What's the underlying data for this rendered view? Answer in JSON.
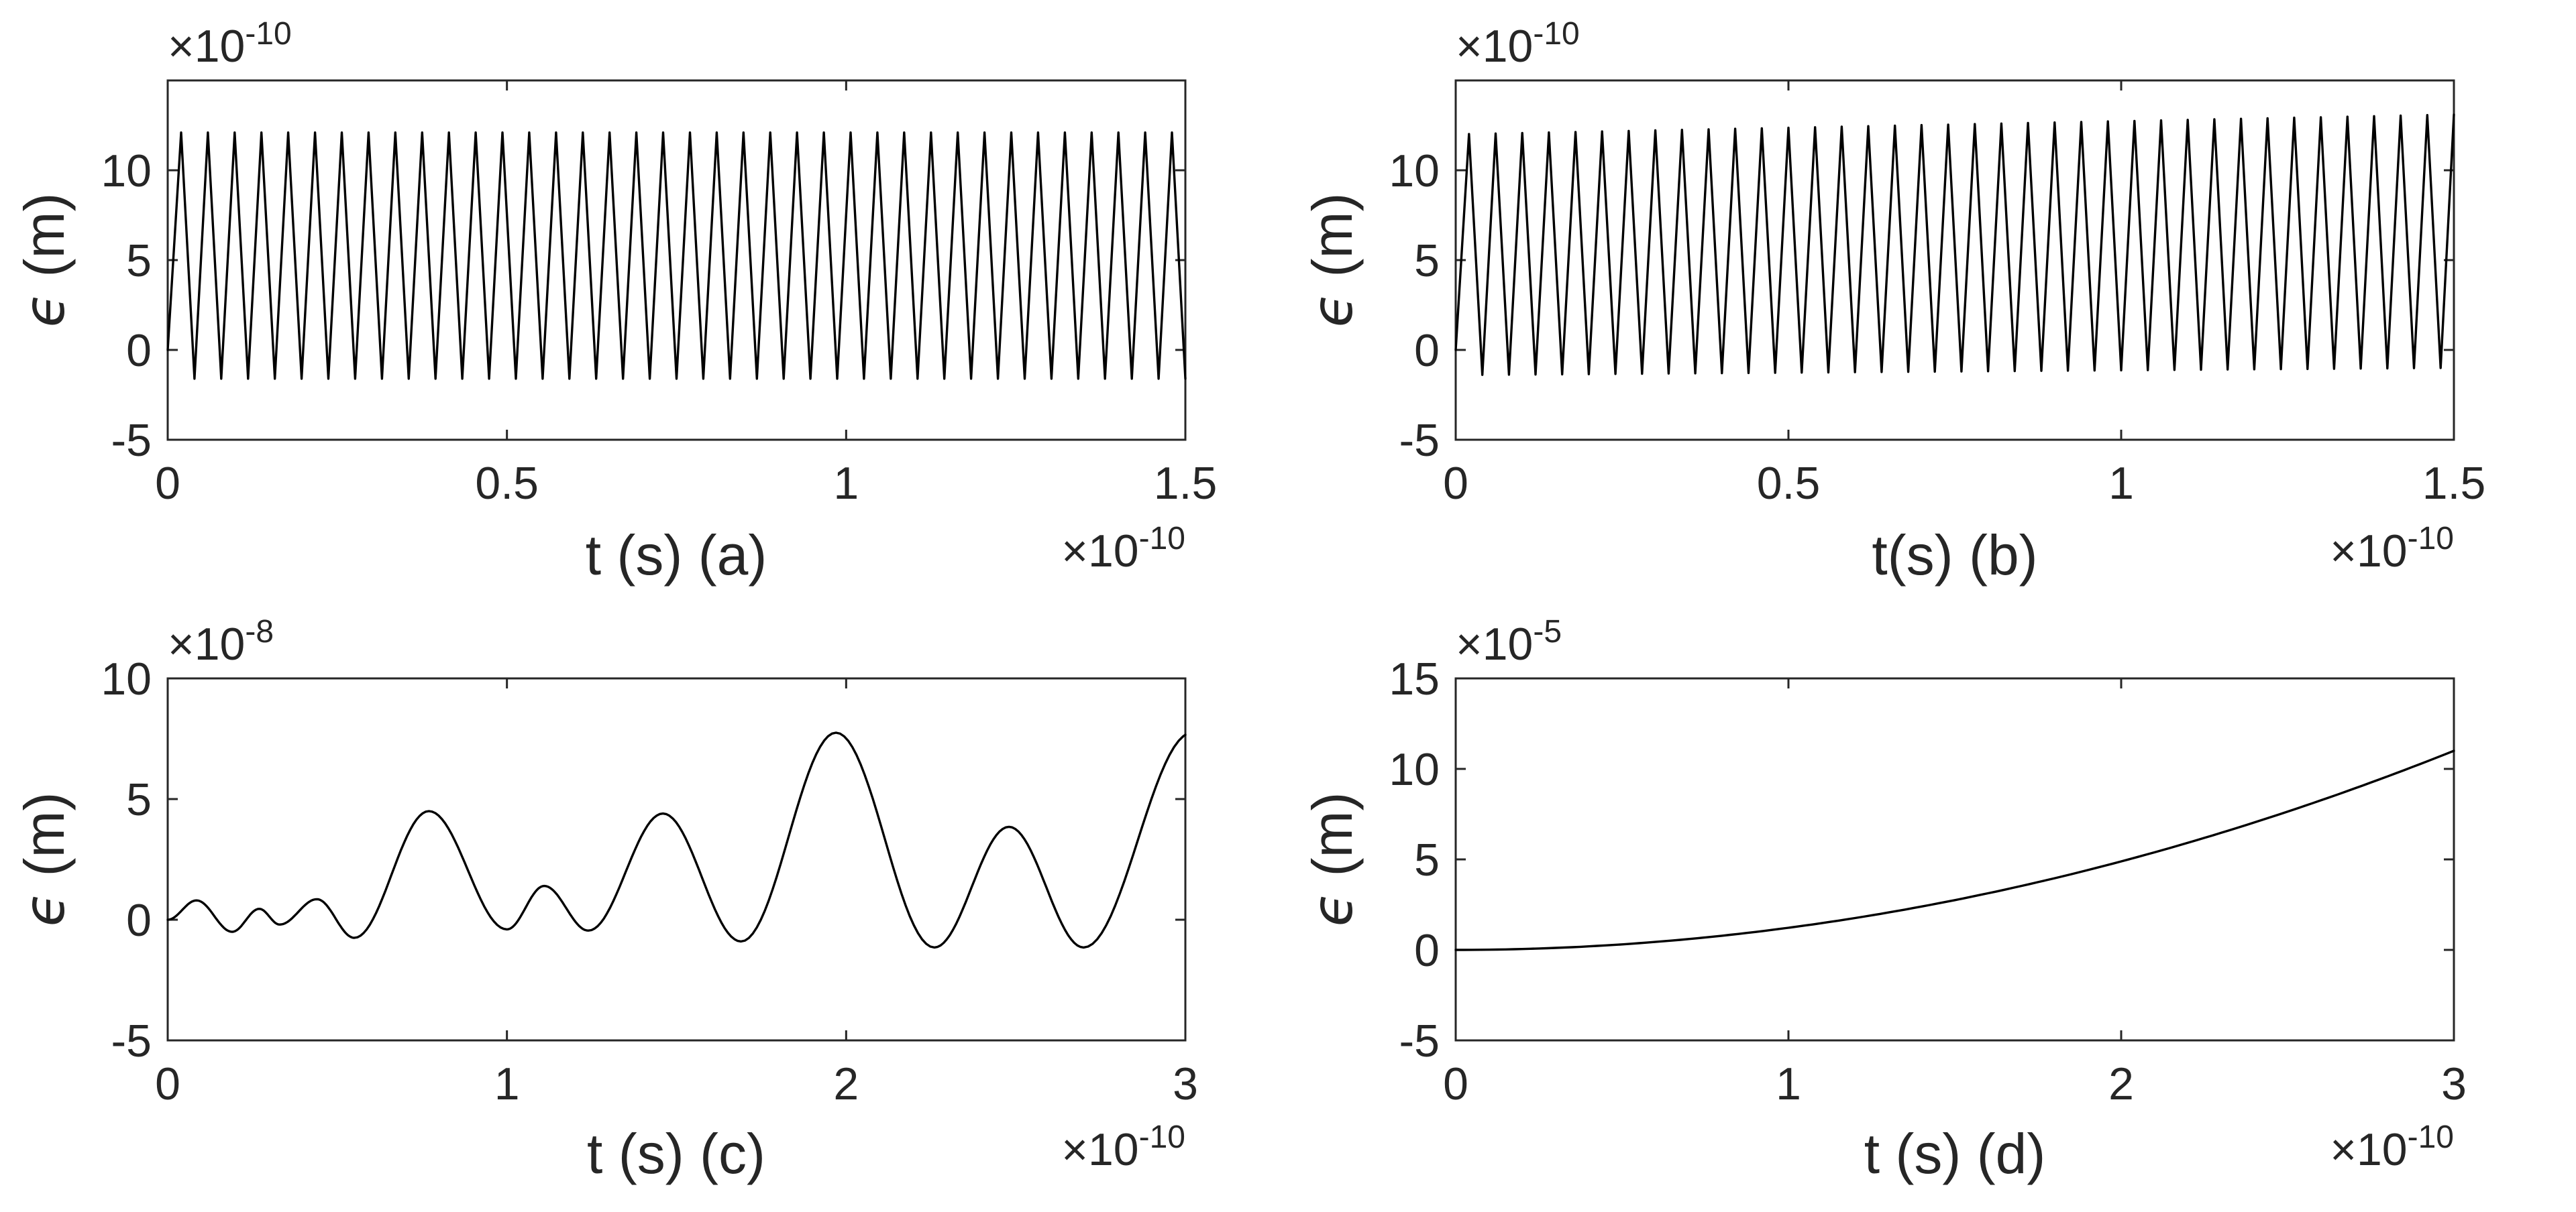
{
  "figure": {
    "background": "#ffffff",
    "curve_color": "#000000",
    "axis_color": "#262626",
    "grid": false,
    "legend": null
  },
  "chart_data": [
    {
      "panel": "a",
      "type": "line",
      "title": "",
      "xlabel": "t (s) (a)",
      "ylabel_symbol": "ϵ",
      "ylabel_rest": " (m)",
      "y_exponent_prefix": "×10",
      "y_exponent_power": "-10",
      "x_exponent_prefix": "×10",
      "x_exponent_power": "-10",
      "xlim": [
        0,
        1.5
      ],
      "ylim": [
        -5,
        15
      ],
      "x_ticks": [
        0,
        0.5,
        1,
        1.5
      ],
      "x_tick_labels": [
        "0",
        "0.5",
        "1",
        "1.5"
      ],
      "y_ticks": [
        -5,
        0,
        5,
        10
      ],
      "y_tick_labels": [
        "-5",
        "0",
        "5",
        "10"
      ],
      "series_description": "dense triangular oscillation, ~38 periods, constant envelope, peaks ~12.1e-10 m, valleys ~-1.6e-10 m",
      "waveform": {
        "kind": "triangle",
        "t_end": 1.5,
        "periods": 38,
        "start_value": 0,
        "peak_start": 12.1,
        "peak_end": 12.1,
        "valley_start": -1.6,
        "valley_end": -1.6
      }
    },
    {
      "panel": "b",
      "type": "line",
      "title": "",
      "xlabel": "t(s) (b)",
      "ylabel_symbol": "ϵ",
      "ylabel_rest": " (m)",
      "y_exponent_prefix": "×10",
      "y_exponent_power": "-10",
      "x_exponent_prefix": "×10",
      "x_exponent_power": "-10",
      "xlim": [
        0,
        1.5
      ],
      "ylim": [
        -5,
        15
      ],
      "x_ticks": [
        0,
        0.5,
        1,
        1.5
      ],
      "x_tick_labels": [
        "0",
        "0.5",
        "1",
        "1.5"
      ],
      "y_ticks": [
        -5,
        0,
        5,
        10
      ],
      "y_tick_labels": [
        "-5",
        "0",
        "5",
        "10"
      ],
      "series_description": "dense triangular oscillation, ~37.5 periods, slowly growing envelope, peaks 12.0→13.1e-10 m, valleys ~-1.4→-1.0e-10 m",
      "waveform": {
        "kind": "triangle",
        "t_end": 1.5,
        "periods": 37.5,
        "start_value": 0,
        "peak_start": 12.0,
        "peak_end": 13.1,
        "valley_start": -1.4,
        "valley_end": -1.0
      }
    },
    {
      "panel": "c",
      "type": "line",
      "title": "",
      "xlabel": "t (s) (c)",
      "ylabel_symbol": "ϵ",
      "ylabel_rest": " (m)",
      "y_exponent_prefix": "×10",
      "y_exponent_power": "-8",
      "x_exponent_prefix": "×10",
      "x_exponent_power": "-10",
      "xlim": [
        0,
        3
      ],
      "ylim": [
        -5,
        10
      ],
      "x_ticks": [
        0,
        1,
        2,
        3
      ],
      "x_tick_labels": [
        "0",
        "1",
        "2",
        "3"
      ],
      "y_ticks": [
        -5,
        0,
        5,
        10
      ],
      "y_tick_labels": [
        "-5",
        "0",
        "5",
        "10"
      ],
      "series_description": "irregular sequence of rounded arches (beat-like error growth); extrema listed as [t(1e-10 s), eps(1e-8 m)]",
      "waveform": {
        "kind": "arches",
        "clip_t": 3,
        "extrema": [
          [
            0,
            0
          ],
          [
            0.085,
            0.8
          ],
          [
            0.19,
            -0.5
          ],
          [
            0.27,
            0.45
          ],
          [
            0.33,
            -0.2
          ],
          [
            0.44,
            0.85
          ],
          [
            0.55,
            -0.75
          ],
          [
            0.77,
            4.5
          ],
          [
            1.0,
            -0.4
          ],
          [
            1.11,
            1.4
          ],
          [
            1.24,
            -0.45
          ],
          [
            1.46,
            4.4
          ],
          [
            1.69,
            -0.9
          ],
          [
            1.97,
            7.75
          ],
          [
            2.26,
            -1.15
          ],
          [
            2.48,
            3.85
          ],
          [
            2.7,
            -1.15
          ],
          [
            3.02,
            7.75
          ]
        ]
      }
    },
    {
      "panel": "d",
      "type": "line",
      "title": "",
      "xlabel": "t (s) (d)",
      "ylabel_symbol": "ϵ",
      "ylabel_rest": " (m)",
      "y_exponent_prefix": "×10",
      "y_exponent_power": "-5",
      "x_exponent_prefix": "×10",
      "x_exponent_power": "-10",
      "xlim": [
        0,
        3
      ],
      "ylim": [
        -5,
        15
      ],
      "x_ticks": [
        0,
        1,
        2,
        3
      ],
      "x_tick_labels": [
        "0",
        "1",
        "2",
        "3"
      ],
      "y_ticks": [
        -5,
        0,
        5,
        10,
        15
      ],
      "y_tick_labels": [
        "-5",
        "0",
        "5",
        "10",
        "15"
      ],
      "series_description": "smooth monotonically growing quadratic-like curve from 0 to ~11e-5 m at t=3e-10 s",
      "waveform": {
        "kind": "quadratic",
        "t_end": 3,
        "end_value": 11
      }
    }
  ]
}
